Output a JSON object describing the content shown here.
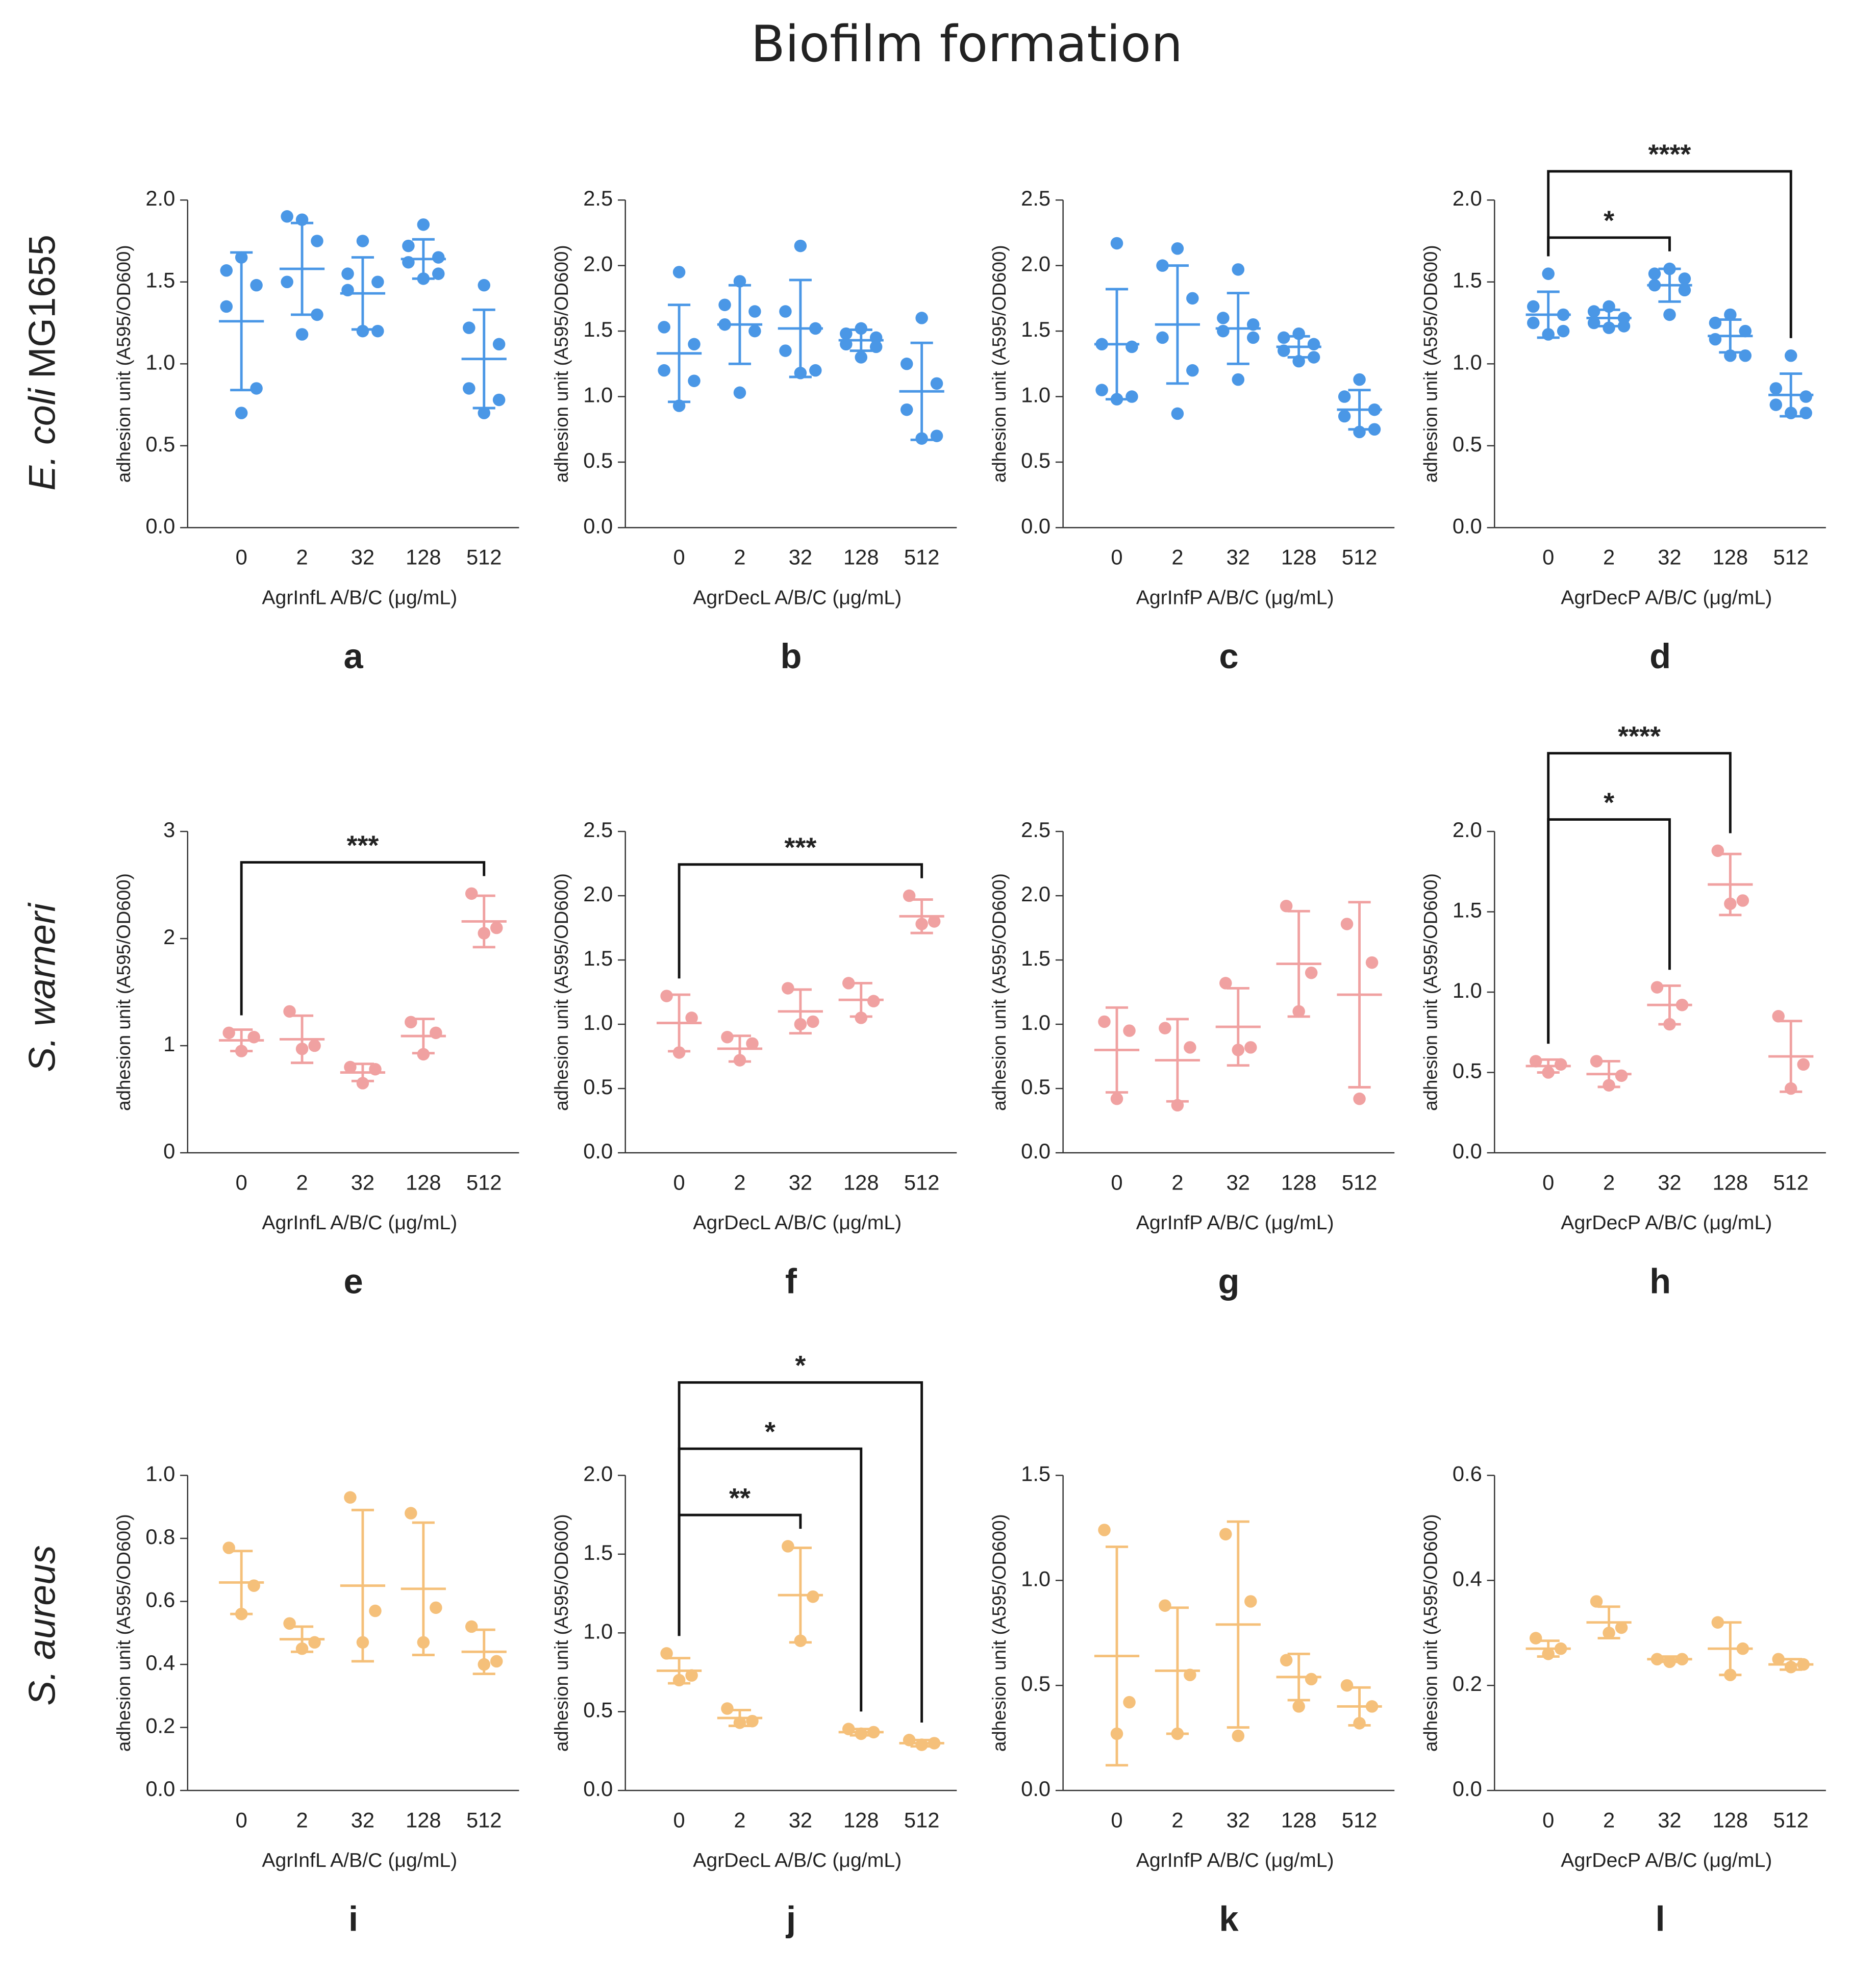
{
  "title": "Biofilm formation",
  "rows": [
    {
      "species": "E. coli",
      "strain": "MG1655"
    },
    {
      "species": "S. warneri"
    },
    {
      "species": "S. aureus"
    }
  ],
  "chart_data": [
    {
      "type": "dot",
      "panel": "a",
      "categories": [
        "0",
        "2",
        "32",
        "128",
        "512"
      ],
      "color": "#4a97e6",
      "values": [
        [
          1.65,
          1.57,
          1.48,
          1.35,
          0.85,
          0.7
        ],
        [
          1.88,
          1.9,
          1.75,
          1.5,
          1.3,
          1.18
        ],
        [
          1.75,
          1.55,
          1.5,
          1.45,
          1.2,
          1.2
        ],
        [
          1.85,
          1.72,
          1.65,
          1.62,
          1.55,
          1.52
        ],
        [
          1.48,
          1.22,
          1.12,
          0.85,
          0.78,
          0.7
        ]
      ],
      "means": [
        1.26,
        1.58,
        1.43,
        1.64,
        1.03
      ],
      "errors": [
        0.42,
        0.28,
        0.22,
        0.12,
        0.3
      ],
      "ylim": [
        0,
        2
      ],
      "yticks": [
        {
          "value": 0,
          "label": "0.0"
        },
        0.5,
        {
          "value": 1,
          "label": "1.0"
        },
        1.5,
        {
          "value": 2,
          "label": "2.0"
        }
      ],
      "xlabel": "AgrInfL A/B/C (μg/mL)",
      "ylabel": "adhesion unit (A595/OD600)",
      "comparisons": []
    },
    {
      "type": "dot",
      "panel": "b",
      "categories": [
        "0",
        "2",
        "32",
        "128",
        "512"
      ],
      "color": "#4a97e6",
      "values": [
        [
          1.95,
          1.53,
          1.4,
          1.2,
          1.12,
          0.93
        ],
        [
          1.88,
          1.7,
          1.65,
          1.55,
          1.5,
          1.03
        ],
        [
          2.15,
          1.65,
          1.52,
          1.35,
          1.2,
          1.18
        ],
        [
          1.52,
          1.48,
          1.45,
          1.4,
          1.38,
          1.3
        ],
        [
          1.6,
          1.25,
          1.1,
          0.9,
          0.7,
          0.68
        ]
      ],
      "means": [
        1.33,
        1.55,
        1.52,
        1.43,
        1.04
      ],
      "errors": [
        0.37,
        0.3,
        0.37,
        0.08,
        0.37
      ],
      "ylim": [
        0,
        2.5
      ],
      "yticks": [
        {
          "value": 0,
          "label": "0.0"
        },
        0.5,
        {
          "value": 1,
          "label": "1.0"
        },
        1.5,
        {
          "value": 2,
          "label": "2.0"
        },
        2.5
      ],
      "xlabel": "AgrDecL A/B/C (μg/mL)",
      "ylabel": "adhesion unit (A595/OD600)",
      "comparisons": []
    },
    {
      "type": "dot",
      "panel": "c",
      "categories": [
        "0",
        "2",
        "32",
        "128",
        "512"
      ],
      "color": "#4a97e6",
      "values": [
        [
          2.17,
          1.4,
          1.38,
          1.05,
          1.0,
          0.98
        ],
        [
          2.13,
          2.0,
          1.75,
          1.45,
          1.2,
          0.87
        ],
        [
          1.97,
          1.6,
          1.55,
          1.5,
          1.45,
          1.13
        ],
        [
          1.48,
          1.45,
          1.4,
          1.35,
          1.3,
          1.27
        ],
        [
          1.13,
          1.0,
          0.9,
          0.85,
          0.75,
          0.73
        ]
      ],
      "means": [
        1.4,
        1.55,
        1.52,
        1.38,
        0.9
      ],
      "errors": [
        0.42,
        0.45,
        0.27,
        0.08,
        0.15
      ],
      "ylim": [
        0,
        2.5
      ],
      "yticks": [
        {
          "value": 0,
          "label": "0.0"
        },
        0.5,
        {
          "value": 1,
          "label": "1.0"
        },
        1.5,
        {
          "value": 2,
          "label": "2.0"
        },
        2.5
      ],
      "xlabel": "AgrInfP A/B/C (μg/mL)",
      "ylabel": "adhesion unit (A595/OD600)",
      "comparisons": []
    },
    {
      "type": "dot",
      "panel": "d",
      "categories": [
        "0",
        "2",
        "32",
        "128",
        "512"
      ],
      "color": "#4a97e6",
      "values": [
        [
          1.55,
          1.35,
          1.3,
          1.25,
          1.2,
          1.18
        ],
        [
          1.35,
          1.32,
          1.28,
          1.25,
          1.23,
          1.22
        ],
        [
          1.58,
          1.55,
          1.52,
          1.48,
          1.45,
          1.3
        ],
        [
          1.3,
          1.25,
          1.2,
          1.15,
          1.05,
          1.05
        ],
        [
          1.05,
          0.85,
          0.8,
          0.75,
          0.7,
          0.7
        ]
      ],
      "means": [
        1.3,
        1.28,
        1.48,
        1.17,
        0.81
      ],
      "errors": [
        0.14,
        0.05,
        0.1,
        0.1,
        0.13
      ],
      "ylim": [
        0,
        2
      ],
      "yticks": [
        {
          "value": 0,
          "label": "0.0"
        },
        0.5,
        {
          "value": 1,
          "label": "1.0"
        },
        1.5,
        {
          "value": 2,
          "label": "2.0"
        }
      ],
      "xlabel": "AgrDecP A/B/C (μg/mL)",
      "ylabel": "adhesion unit (A595/OD600)",
      "comparisons": [
        {
          "from": "0",
          "to": "32",
          "label": "*"
        },
        {
          "from": "0",
          "to": "512",
          "label": "****"
        }
      ]
    },
    {
      "type": "dot",
      "panel": "e",
      "categories": [
        "0",
        "2",
        "32",
        "128",
        "512"
      ],
      "color": "#f0a1a1",
      "values": [
        [
          1.12,
          1.08,
          0.95
        ],
        [
          1.32,
          1.0,
          0.97
        ],
        [
          0.8,
          0.78,
          0.65
        ],
        [
          1.22,
          1.12,
          0.92
        ],
        [
          2.42,
          2.1,
          2.05
        ]
      ],
      "means": [
        1.05,
        1.06,
        0.75,
        1.09,
        2.16
      ],
      "errors": [
        0.1,
        0.22,
        0.08,
        0.16,
        0.24
      ],
      "ylim": [
        0,
        3
      ],
      "yticks": [
        0,
        1,
        2,
        3
      ],
      "xlabel": "AgrInfL A/B/C (μg/mL)",
      "ylabel": "adhesion unit (A595/OD600)",
      "comparisons": [
        {
          "from": "0",
          "to": "512",
          "label": "***"
        }
      ]
    },
    {
      "type": "dot",
      "panel": "f",
      "categories": [
        "0",
        "2",
        "32",
        "128",
        "512"
      ],
      "color": "#f0a1a1",
      "values": [
        [
          1.22,
          1.05,
          0.78
        ],
        [
          0.9,
          0.85,
          0.72
        ],
        [
          1.28,
          1.02,
          1.0
        ],
        [
          1.32,
          1.18,
          1.05
        ],
        [
          2.0,
          1.8,
          1.78
        ]
      ],
      "means": [
        1.01,
        0.81,
        1.1,
        1.19,
        1.84
      ],
      "errors": [
        0.22,
        0.1,
        0.17,
        0.13,
        0.13
      ],
      "ylim": [
        0,
        2.5
      ],
      "yticks": [
        {
          "value": 0,
          "label": "0.0"
        },
        0.5,
        {
          "value": 1,
          "label": "1.0"
        },
        1.5,
        {
          "value": 2,
          "label": "2.0"
        },
        2.5
      ],
      "xlabel": "AgrDecL A/B/C (μg/mL)",
      "ylabel": "adhesion unit (A595/OD600)",
      "comparisons": [
        {
          "from": "0",
          "to": "512",
          "label": "***"
        }
      ]
    },
    {
      "type": "dot",
      "panel": "g",
      "categories": [
        "0",
        "2",
        "32",
        "128",
        "512"
      ],
      "color": "#f0a1a1",
      "values": [
        [
          1.02,
          0.95,
          0.42
        ],
        [
          0.97,
          0.82,
          0.37
        ],
        [
          1.32,
          0.82,
          0.8
        ],
        [
          1.92,
          1.4,
          1.1
        ],
        [
          1.78,
          1.48,
          0.42
        ]
      ],
      "means": [
        0.8,
        0.72,
        0.98,
        1.47,
        1.23
      ],
      "errors": [
        0.33,
        0.32,
        0.3,
        0.41,
        0.72
      ],
      "ylim": [
        0,
        2.5
      ],
      "yticks": [
        {
          "value": 0,
          "label": "0.0"
        },
        0.5,
        {
          "value": 1,
          "label": "1.0"
        },
        1.5,
        {
          "value": 2,
          "label": "2.0"
        },
        2.5
      ],
      "xlabel": "AgrInfP A/B/C (μg/mL)",
      "ylabel": "adhesion unit (A595/OD600)",
      "comparisons": []
    },
    {
      "type": "dot",
      "panel": "h",
      "categories": [
        "0",
        "2",
        "32",
        "128",
        "512"
      ],
      "color": "#f0a1a1",
      "values": [
        [
          0.57,
          0.55,
          0.5
        ],
        [
          0.57,
          0.48,
          0.42
        ],
        [
          1.03,
          0.92,
          0.8
        ],
        [
          1.88,
          1.57,
          1.55
        ],
        [
          0.85,
          0.55,
          0.4
        ]
      ],
      "means": [
        0.54,
        0.49,
        0.92,
        1.67,
        0.6
      ],
      "errors": [
        0.04,
        0.08,
        0.12,
        0.19,
        0.22
      ],
      "ylim": [
        0,
        2
      ],
      "yticks": [
        {
          "value": 0,
          "label": "0.0"
        },
        0.5,
        {
          "value": 1,
          "label": "1.0"
        },
        1.5,
        {
          "value": 2,
          "label": "2.0"
        }
      ],
      "xlabel": "AgrDecP A/B/C (μg/mL)",
      "ylabel": "adhesion unit (A595/OD600)",
      "comparisons": [
        {
          "from": "0",
          "to": "32",
          "label": "*"
        },
        {
          "from": "0",
          "to": "128",
          "label": "****"
        }
      ]
    },
    {
      "type": "dot",
      "panel": "i",
      "categories": [
        "0",
        "2",
        "32",
        "128",
        "512"
      ],
      "color": "#f5c07a",
      "values": [
        [
          0.77,
          0.65,
          0.56
        ],
        [
          0.53,
          0.47,
          0.45
        ],
        [
          0.93,
          0.57,
          0.47
        ],
        [
          0.88,
          0.58,
          0.47
        ],
        [
          0.52,
          0.41,
          0.4
        ]
      ],
      "means": [
        0.66,
        0.48,
        0.65,
        0.64,
        0.44
      ],
      "errors": [
        0.1,
        0.04,
        0.24,
        0.21,
        0.07
      ],
      "ylim": [
        0,
        1
      ],
      "yticks": [
        {
          "value": 0,
          "label": "0.0"
        },
        0.2,
        0.4,
        0.6,
        0.8,
        {
          "value": 1,
          "label": "1.0"
        }
      ],
      "xlabel": "AgrInfL A/B/C (μg/mL)",
      "ylabel": "adhesion unit (A595/OD600)",
      "comparisons": []
    },
    {
      "type": "dot",
      "panel": "j",
      "categories": [
        "0",
        "2",
        "32",
        "128",
        "512"
      ],
      "color": "#f5c07a",
      "values": [
        [
          0.87,
          0.73,
          0.7
        ],
        [
          0.52,
          0.44,
          0.43
        ],
        [
          1.55,
          1.23,
          0.95
        ],
        [
          0.39,
          0.37,
          0.36
        ],
        [
          0.32,
          0.3,
          0.29
        ]
      ],
      "means": [
        0.76,
        0.46,
        1.24,
        0.37,
        0.3
      ],
      "errors": [
        0.08,
        0.05,
        0.3,
        0.02,
        0.02
      ],
      "ylim": [
        0,
        2
      ],
      "yticks": [
        {
          "value": 0,
          "label": "0.0"
        },
        0.5,
        {
          "value": 1,
          "label": "1.0"
        },
        1.5,
        {
          "value": 2,
          "label": "2.0"
        }
      ],
      "xlabel": "AgrDecL A/B/C (μg/mL)",
      "ylabel": "adhesion unit (A595/OD600)",
      "comparisons": [
        {
          "from": "0",
          "to": "32",
          "label": "**"
        },
        {
          "from": "0",
          "to": "128",
          "label": "*"
        },
        {
          "from": "0",
          "to": "512",
          "label": "*"
        }
      ]
    },
    {
      "type": "dot",
      "panel": "k",
      "categories": [
        "0",
        "2",
        "32",
        "128",
        "512"
      ],
      "color": "#f5c07a",
      "values": [
        [
          1.24,
          0.42,
          0.27
        ],
        [
          0.88,
          0.55,
          0.27
        ],
        [
          1.22,
          0.9,
          0.26
        ],
        [
          0.62,
          0.53,
          0.4
        ],
        [
          0.5,
          0.4,
          0.32
        ]
      ],
      "means": [
        0.64,
        0.57,
        0.79,
        0.54,
        0.4
      ],
      "errors": [
        0.52,
        0.3,
        0.49,
        0.11,
        0.09
      ],
      "ylim": [
        0,
        1.5
      ],
      "yticks": [
        {
          "value": 0,
          "label": "0.0"
        },
        0.5,
        {
          "value": 1,
          "label": "1.0"
        },
        1.5
      ],
      "xlabel": "AgrInfP A/B/C (μg/mL)",
      "ylabel": "adhesion unit (A595/OD600)",
      "comparisons": []
    },
    {
      "type": "dot",
      "panel": "l",
      "categories": [
        "0",
        "2",
        "32",
        "128",
        "512"
      ],
      "color": "#f5c07a",
      "values": [
        [
          0.29,
          0.27,
          0.26
        ],
        [
          0.36,
          0.31,
          0.3
        ],
        [
          0.25,
          0.25,
          0.245
        ],
        [
          0.32,
          0.27,
          0.22
        ],
        [
          0.25,
          0.24,
          0.235
        ]
      ],
      "means": [
        0.27,
        0.32,
        0.25,
        0.27,
        0.24
      ],
      "errors": [
        0.015,
        0.03,
        0.005,
        0.05,
        0.01
      ],
      "ylim": [
        0,
        0.6
      ],
      "yticks": [
        {
          "value": 0,
          "label": "0.0"
        },
        0.2,
        0.4,
        0.6
      ],
      "xlabel": "AgrDecP A/B/C (μg/mL)",
      "ylabel": "adhesion unit (A595/OD600)",
      "comparisons": []
    }
  ]
}
